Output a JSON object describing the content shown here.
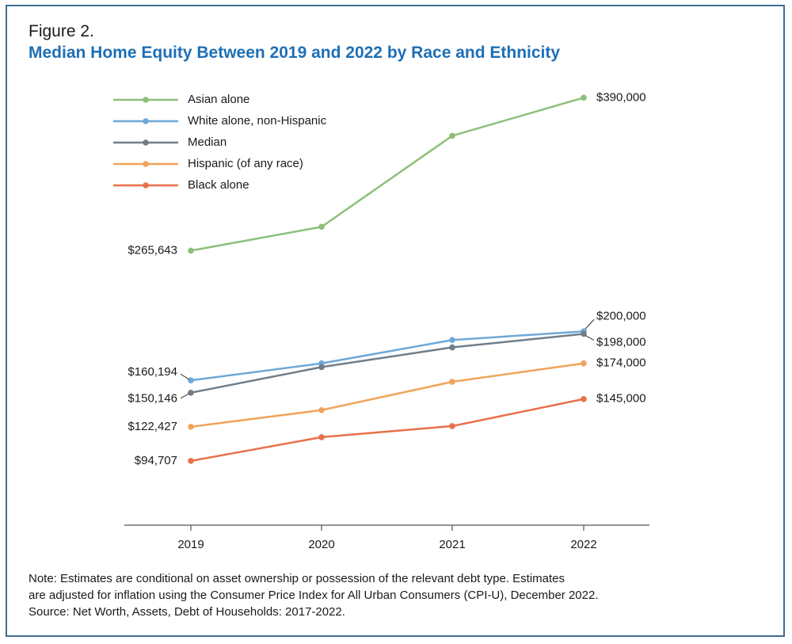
{
  "figure_label": "Figure 2.",
  "title": "Median Home Equity Between 2019 and 2022 by Race and Ethnicity",
  "notes": {
    "line1": "Note: Estimates are conditional on asset ownership or possession of the relevant debt type. Estimates",
    "line2": "are adjusted for inflation using the Consumer Price Index for All Urban Consumers (CPI-U), December 2022.",
    "source": "Source: Net Worth, Assets, Debt of Households: 2017-2022."
  },
  "chart_data": {
    "type": "line",
    "title": "Median Home Equity Between 2019 and 2022 by Race and Ethnicity",
    "xlabel": "",
    "ylabel": "",
    "categories": [
      "2019",
      "2020",
      "2021",
      "2022"
    ],
    "ylim": [
      65000,
      405000
    ],
    "grid": false,
    "legend_placement": "top-left",
    "series": [
      {
        "name": "Asian alone",
        "color": "#8cc07a",
        "values": [
          265643,
          285000,
          359000,
          390000
        ],
        "labels": [
          "$265,643",
          "",
          "",
          "$390,000"
        ]
      },
      {
        "name": "White alone, non-Hispanic",
        "color": "#6ea8d8",
        "values": [
          160194,
          174000,
          193000,
          200000
        ],
        "labels": [
          "$160,194",
          "",
          "",
          "$200,000"
        ]
      },
      {
        "name": "Median",
        "color": "#707e8a",
        "values": [
          150146,
          171000,
          187000,
          198000
        ],
        "labels": [
          "$150,146",
          "",
          "",
          "$198,000"
        ]
      },
      {
        "name": "Hispanic (of any race)",
        "color": "#f0a45a",
        "values": [
          122427,
          136000,
          159000,
          174000
        ],
        "labels": [
          "$122,427",
          "",
          "",
          "$174,000"
        ]
      },
      {
        "name": "Black alone",
        "color": "#e8704a",
        "values": [
          94707,
          114000,
          123000,
          145000
        ],
        "labels": [
          "$94,707",
          "",
          "",
          "$145,000"
        ]
      }
    ]
  }
}
